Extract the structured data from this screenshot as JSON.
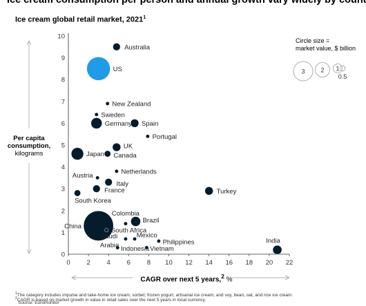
{
  "headline": "Ice cream consumption per person and annual growth vary widely by country.",
  "chart_data": {
    "type": "scatter",
    "title": "Ice cream global retail market, 2021",
    "title_note_marker": "1",
    "ylabel_bold": "Per capita consumption,",
    "ylabel_unit": "kilograms",
    "xlabel_bold": "CAGR over next 5 years,",
    "xlabel_note_marker": "2",
    "xlabel_unit": "%",
    "xlim": [
      0,
      22
    ],
    "ylim": [
      0,
      10
    ],
    "xticks": [
      "0",
      "2",
      "4",
      "6",
      "8",
      "10",
      "12",
      "14",
      "16",
      "18",
      "20",
      "22"
    ],
    "yticks": [
      "0",
      "1",
      "2",
      "3",
      "4",
      "5",
      "6",
      "7",
      "8",
      "9",
      "10"
    ],
    "legend": {
      "title_line1": "Circle size =",
      "title_line2": "market value, $ billion",
      "placement": "top-right",
      "sizes": [
        {
          "label": "3",
          "value": 3
        },
        {
          "label": "2",
          "value": 2
        },
        {
          "label": "1",
          "value": 1
        },
        {
          "label": "0.5",
          "value": 0.5
        }
      ]
    },
    "points": [
      {
        "name": "Australia",
        "x": 4.8,
        "y": 9.5,
        "size": 0.4,
        "color": "#051c2c"
      },
      {
        "name": "US",
        "x": 3.0,
        "y": 8.5,
        "size": 4.0,
        "color": "#1f9ce8"
      },
      {
        "name": "New Zealand",
        "x": 3.9,
        "y": 6.9,
        "size": 0.1,
        "color": "#051c2c"
      },
      {
        "name": "Sweden",
        "x": 2.8,
        "y": 6.4,
        "size": 0.1,
        "color": "#051c2c"
      },
      {
        "name": "Germany",
        "x": 2.8,
        "y": 6.0,
        "size": 0.9,
        "color": "#051c2c"
      },
      {
        "name": "Spain",
        "x": 6.6,
        "y": 6.0,
        "size": 0.5,
        "color": "#051c2c"
      },
      {
        "name": "Portugal",
        "x": 7.9,
        "y": 5.4,
        "size": 0.1,
        "color": "#051c2c"
      },
      {
        "name": "UK",
        "x": 4.8,
        "y": 4.9,
        "size": 0.5,
        "color": "#051c2c"
      },
      {
        "name": "Japan",
        "x": 0.9,
        "y": 4.6,
        "size": 1.1,
        "color": "#051c2c"
      },
      {
        "name": "Canada",
        "x": 3.9,
        "y": 4.6,
        "size": 0.3,
        "color": "#051c2c"
      },
      {
        "name": "Netherlands",
        "x": 4.8,
        "y": 3.8,
        "size": 0.1,
        "color": "#051c2c"
      },
      {
        "name": "Austria",
        "x": 2.9,
        "y": 3.5,
        "size": 0.1,
        "color": "#051c2c"
      },
      {
        "name": "Italy",
        "x": 4.0,
        "y": 3.3,
        "size": 0.4,
        "color": "#051c2c"
      },
      {
        "name": "France",
        "x": 2.8,
        "y": 3.0,
        "size": 0.4,
        "color": "#051c2c"
      },
      {
        "name": "South Korea",
        "x": 0.9,
        "y": 2.8,
        "size": 0.3,
        "color": "#051c2c"
      },
      {
        "name": "Turkey",
        "x": 14.0,
        "y": 2.9,
        "size": 0.5,
        "color": "#051c2c"
      },
      {
        "name": "Colombia",
        "x": 5.7,
        "y": 1.4,
        "size": 0.1,
        "color": "#051c2c"
      },
      {
        "name": "Brazil",
        "x": 6.7,
        "y": 1.5,
        "size": 0.7,
        "color": "#051c2c"
      },
      {
        "name": "China",
        "x": 3.0,
        "y": 1.3,
        "size": 6.5,
        "color": "#051c2c"
      },
      {
        "name": "South Africa",
        "x": 3.8,
        "y": 1.1,
        "size": 0.1,
        "color": "#051c2c"
      },
      {
        "name": "Saudi Arabia",
        "x": 5.7,
        "y": 0.7,
        "size": 0.1,
        "color": "#051c2c"
      },
      {
        "name": "Mexico",
        "x": 6.6,
        "y": 0.7,
        "size": 0.1,
        "color": "#051c2c"
      },
      {
        "name": "Philippines",
        "x": 9.0,
        "y": 0.6,
        "size": 0.1,
        "color": "#051c2c"
      },
      {
        "name": "Indonesia",
        "x": 4.9,
        "y": 0.3,
        "size": 0.1,
        "color": "#051c2c"
      },
      {
        "name": "Vietnam",
        "x": 7.8,
        "y": 0.3,
        "size": 0.1,
        "color": "#051c2c"
      },
      {
        "name": "India",
        "x": 20.8,
        "y": 0.2,
        "size": 0.6,
        "color": "#051c2c"
      }
    ]
  },
  "footnotes": {
    "note1_marker": "1",
    "note1": "The category includes impulse and take-home ice cream; sorbet; frozen yogurt; artisanal ice cream; and soy, bean, oat, and rice ice cream.",
    "note2_marker": "2",
    "note2": "CAGR is based on market growth in value in retail sales over the next 5 years in local currency.",
    "source": "Source: Euromonitor"
  }
}
